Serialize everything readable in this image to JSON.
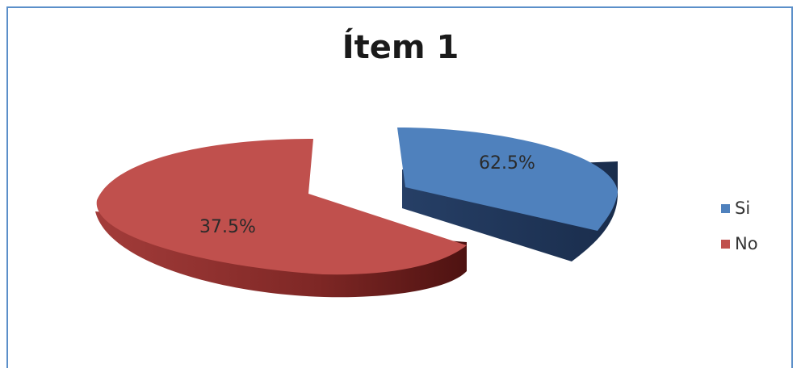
{
  "chart_data": {
    "type": "pie",
    "title": "Ítem 1",
    "slices": [
      {
        "name": "Si",
        "value": 62.5,
        "label": "62.5%",
        "color": "#4f81bd"
      },
      {
        "name": "No",
        "value": 37.5,
        "label": "37.5%",
        "color": "#c0504d"
      }
    ],
    "legend": {
      "placement": "right"
    },
    "style": "3d-exploded"
  }
}
